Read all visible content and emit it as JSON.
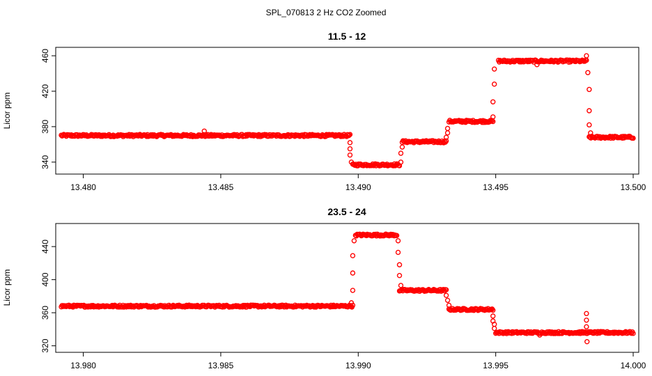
{
  "figure_title": "SPL_070813  2 Hz CO2 Zoomed",
  "colors": {
    "points": "#ff0000",
    "axes": "#000000",
    "background": "#ffffff"
  },
  "chart_data": [
    {
      "type": "scatter",
      "title": "11.5 - 12",
      "xlabel": "",
      "ylabel": "Licor ppm",
      "xlim": [
        13.4792,
        13.5
      ],
      "ylim": [
        332,
        464
      ],
      "xticks": [
        {
          "v": 13.48,
          "label": "13.480"
        },
        {
          "v": 13.485,
          "label": "13.485"
        },
        {
          "v": 13.49,
          "label": "13.490"
        },
        {
          "v": 13.495,
          "label": "13.495"
        },
        {
          "v": 13.5,
          "label": "13.500"
        }
      ],
      "yticks": [
        {
          "v": 340,
          "label": "340"
        },
        {
          "v": 380,
          "label": "380"
        },
        {
          "v": 420,
          "label": "420"
        },
        {
          "v": 460,
          "label": "460"
        }
      ],
      "marker": "open circle",
      "segments": [
        {
          "x_start": 13.4792,
          "x_end": 13.4897,
          "y": 370
        },
        {
          "x_start": 13.4898,
          "x_end": 13.4915,
          "y": 337
        },
        {
          "x_start": 13.4916,
          "x_end": 13.4932,
          "y": 363
        },
        {
          "x_start": 13.4933,
          "x_end": 13.4949,
          "y": 386
        },
        {
          "x_start": 13.4951,
          "x_end": 13.4983,
          "y": 454
        },
        {
          "x_start": 13.4984,
          "x_end": 13.5,
          "y": 368
        }
      ],
      "transition_points": [
        {
          "x": 13.48965,
          "y": 370
        },
        {
          "x": 13.4897,
          "y": 362
        },
        {
          "x": 13.4897,
          "y": 355
        },
        {
          "x": 13.4897,
          "y": 348
        },
        {
          "x": 13.48975,
          "y": 340
        },
        {
          "x": 13.49155,
          "y": 340
        },
        {
          "x": 13.49155,
          "y": 350
        },
        {
          "x": 13.4916,
          "y": 357
        },
        {
          "x": 13.4932,
          "y": 368
        },
        {
          "x": 13.49325,
          "y": 373
        },
        {
          "x": 13.49325,
          "y": 378
        },
        {
          "x": 13.4949,
          "y": 391
        },
        {
          "x": 13.4949,
          "y": 408
        },
        {
          "x": 13.49495,
          "y": 428
        },
        {
          "x": 13.49495,
          "y": 445
        },
        {
          "x": 13.4983,
          "y": 460
        },
        {
          "x": 13.49835,
          "y": 441
        },
        {
          "x": 13.4984,
          "y": 422
        },
        {
          "x": 13.4984,
          "y": 398
        },
        {
          "x": 13.4984,
          "y": 382
        },
        {
          "x": 13.49845,
          "y": 373
        },
        {
          "x": 13.4965,
          "y": 450
        },
        {
          "x": 13.4844,
          "y": 375
        }
      ]
    },
    {
      "type": "scatter",
      "title": "23.5 - 24",
      "xlabel": "",
      "ylabel": "Licor ppm",
      "xlim": [
        13.9792,
        14.0
      ],
      "ylim": [
        318,
        462
      ],
      "xticks": [
        {
          "v": 13.98,
          "label": "13.980"
        },
        {
          "v": 13.985,
          "label": "13.985"
        },
        {
          "v": 13.99,
          "label": "13.990"
        },
        {
          "v": 13.995,
          "label": "13.995"
        },
        {
          "v": 14.0,
          "label": "14.000"
        }
      ],
      "yticks": [
        {
          "v": 320,
          "label": "320"
        },
        {
          "v": 360,
          "label": "360"
        },
        {
          "v": 400,
          "label": "400"
        },
        {
          "v": 440,
          "label": "440"
        }
      ],
      "marker": "open circle",
      "segments": [
        {
          "x_start": 13.9792,
          "x_end": 13.9898,
          "y": 368
        },
        {
          "x_start": 13.9899,
          "x_end": 13.9914,
          "y": 454
        },
        {
          "x_start": 13.9915,
          "x_end": 13.9932,
          "y": 387
        },
        {
          "x_start": 13.9933,
          "x_end": 13.9949,
          "y": 364
        },
        {
          "x_start": 13.995,
          "x_end": 14.0,
          "y": 336
        }
      ],
      "transition_points": [
        {
          "x": 13.98975,
          "y": 372
        },
        {
          "x": 13.9898,
          "y": 387
        },
        {
          "x": 13.9898,
          "y": 408
        },
        {
          "x": 13.9898,
          "y": 429
        },
        {
          "x": 13.98985,
          "y": 447
        },
        {
          "x": 13.99145,
          "y": 447
        },
        {
          "x": 13.99145,
          "y": 433
        },
        {
          "x": 13.9915,
          "y": 418
        },
        {
          "x": 13.9915,
          "y": 405
        },
        {
          "x": 13.99155,
          "y": 393
        },
        {
          "x": 13.9932,
          "y": 381
        },
        {
          "x": 13.99325,
          "y": 375
        },
        {
          "x": 13.9933,
          "y": 369
        },
        {
          "x": 13.9949,
          "y": 356
        },
        {
          "x": 13.9949,
          "y": 350
        },
        {
          "x": 13.99495,
          "y": 346
        },
        {
          "x": 13.99495,
          "y": 341
        },
        {
          "x": 13.9983,
          "y": 359
        },
        {
          "x": 13.9983,
          "y": 351
        },
        {
          "x": 13.9983,
          "y": 343
        },
        {
          "x": 13.99832,
          "y": 325
        },
        {
          "x": 13.9966,
          "y": 333
        }
      ]
    }
  ]
}
